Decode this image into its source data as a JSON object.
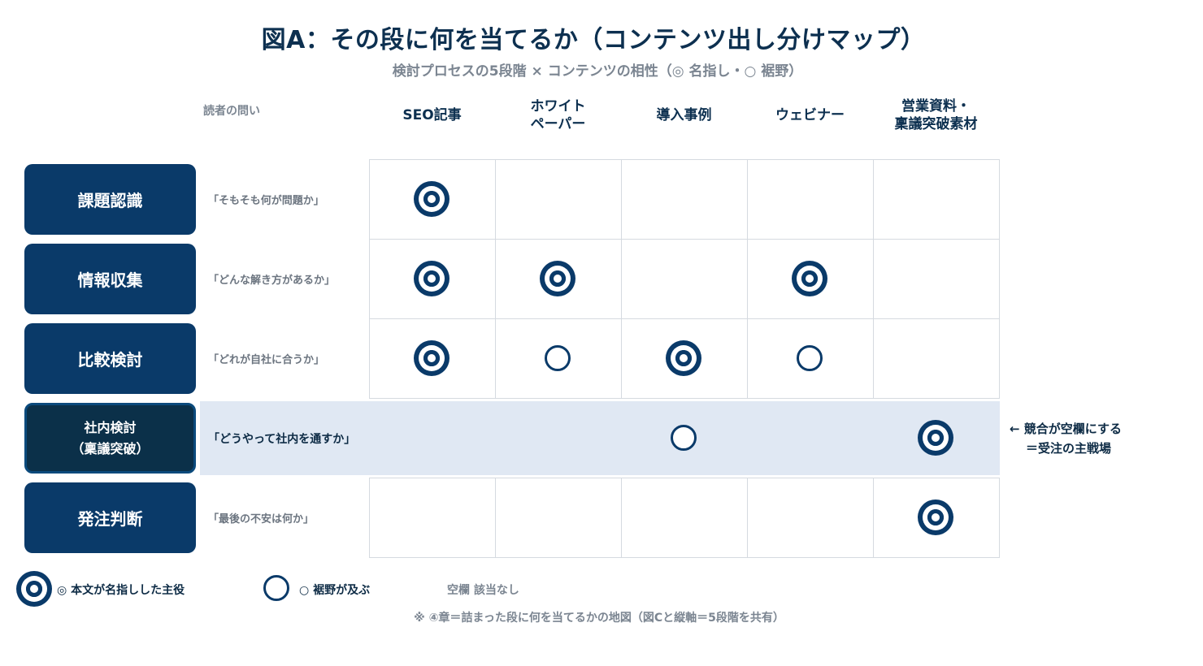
{
  "title": "図A：その段に何を当てるか（コンテンツ出し分けマップ）",
  "subtitle": "検討プロセスの5段階 × コンテンツの相性（◎ 名指し・○ 裾野）",
  "question_header": "読者の問い",
  "columns": [
    "SEO記事",
    "ホワイト\nペーパー",
    "導入事例",
    "ウェビナー",
    "営業資料・\n稟議突破素材"
  ],
  "rows": [
    {
      "stage": "課題認識",
      "question": "「そもそも何が問題か」",
      "marks": [
        "double",
        "",
        "",
        "",
        ""
      ]
    },
    {
      "stage": "情報収集",
      "question": "「どんな解き方があるか」",
      "marks": [
        "double",
        "double",
        "",
        "double",
        ""
      ]
    },
    {
      "stage": "比較検討",
      "question": "「どれが自社に合うか」",
      "marks": [
        "double",
        "single",
        "double",
        "single",
        ""
      ]
    },
    {
      "stage": "社内検討\n（稟議突破）",
      "question": "「どうやって社内を通すか」",
      "marks": [
        "",
        "",
        "single",
        "",
        "double"
      ],
      "highlight": true
    },
    {
      "stage": "発注判断",
      "question": "「最後の不安は何か」",
      "marks": [
        "",
        "",
        "",
        "",
        "double"
      ]
    }
  ],
  "callout": {
    "line1": "← 競合が空欄にする",
    "line2": "＝受注の主戦場"
  },
  "legend": {
    "double": "◎ 本文が名指しした主役",
    "single": "○ 裾野が及ぶ",
    "blank": "空欄  該当なし"
  },
  "note": "※ ④章＝詰まった段に何を当てるかの地図（図Cと縦軸＝5段階を共有）",
  "colors": {
    "navy": "#0a3a69",
    "highlight": "#e0e8f3",
    "muted": "#7b8591"
  }
}
